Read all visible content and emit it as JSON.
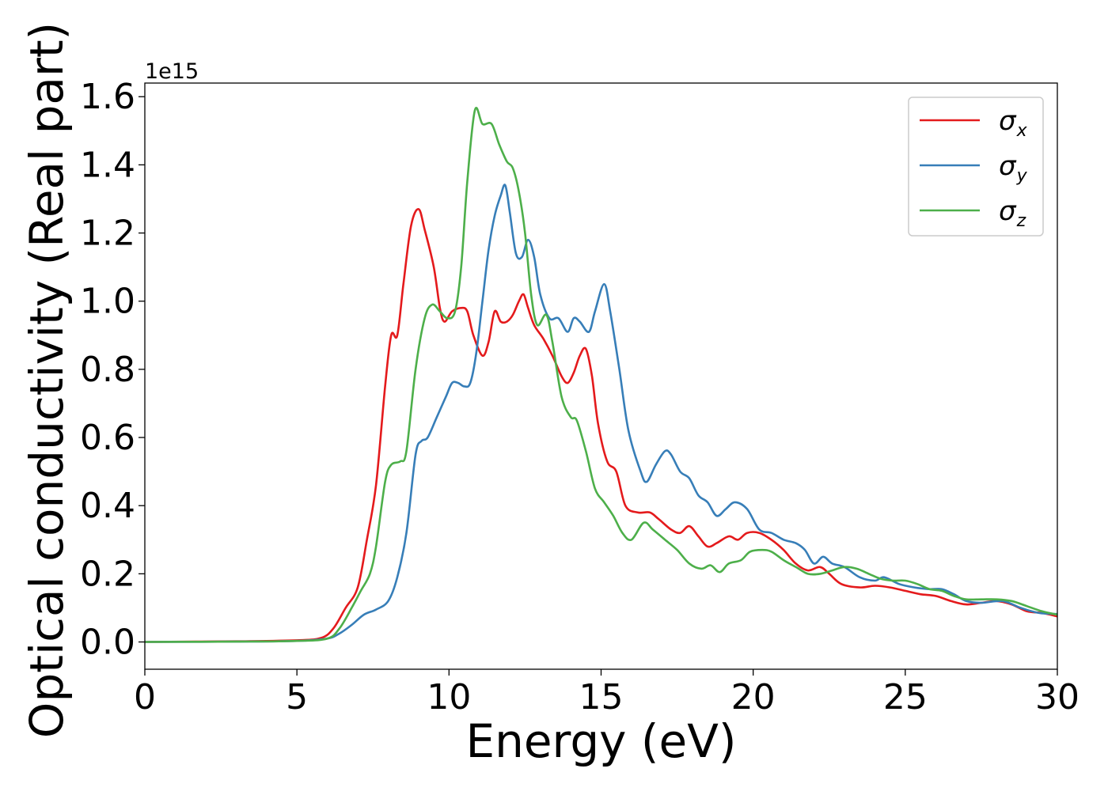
{
  "chart_data": {
    "type": "line",
    "title": "",
    "xlabel": "Energy (eV)",
    "ylabel": "Optical conductivity (Real part)",
    "y_offset_label": "1e15",
    "xlim": [
      0,
      30
    ],
    "ylim": [
      -0.08,
      1.64
    ],
    "xticks": [
      0,
      5,
      10,
      15,
      20,
      25,
      30
    ],
    "yticks": [
      0.0,
      0.2,
      0.4,
      0.6,
      0.8,
      1.0,
      1.2,
      1.4,
      1.6
    ],
    "xtick_labels": [
      "0",
      "5",
      "10",
      "15",
      "20",
      "25",
      "30"
    ],
    "ytick_labels": [
      "0.0",
      "0.2",
      "0.4",
      "0.6",
      "0.8",
      "1.0",
      "1.2",
      "1.4",
      "1.6"
    ],
    "grid": false,
    "legend_position": "top-right",
    "series": [
      {
        "name": "σx",
        "symbol": "σ",
        "subscript": "x",
        "color": "#e41a1c",
        "points": [
          [
            0,
            0
          ],
          [
            3,
            0.002
          ],
          [
            5,
            0.005
          ],
          [
            5.8,
            0.012
          ],
          [
            6.2,
            0.04
          ],
          [
            6.6,
            0.1
          ],
          [
            7,
            0.16
          ],
          [
            7.3,
            0.3
          ],
          [
            7.6,
            0.46
          ],
          [
            7.9,
            0.75
          ],
          [
            8.1,
            0.9
          ],
          [
            8.3,
            0.9
          ],
          [
            8.5,
            1.05
          ],
          [
            8.75,
            1.22
          ],
          [
            9,
            1.27
          ],
          [
            9.2,
            1.21
          ],
          [
            9.5,
            1.1
          ],
          [
            9.7,
            0.98
          ],
          [
            9.85,
            0.94
          ],
          [
            10.1,
            0.97
          ],
          [
            10.4,
            0.98
          ],
          [
            10.6,
            0.97
          ],
          [
            10.8,
            0.9
          ],
          [
            11.1,
            0.84
          ],
          [
            11.3,
            0.88
          ],
          [
            11.5,
            0.97
          ],
          [
            11.7,
            0.94
          ],
          [
            11.9,
            0.94
          ],
          [
            12.1,
            0.96
          ],
          [
            12.3,
            1.0
          ],
          [
            12.45,
            1.02
          ],
          [
            12.6,
            0.98
          ],
          [
            12.8,
            0.93
          ],
          [
            13.1,
            0.89
          ],
          [
            13.4,
            0.84
          ],
          [
            13.7,
            0.78
          ],
          [
            13.9,
            0.76
          ],
          [
            14.1,
            0.79
          ],
          [
            14.3,
            0.84
          ],
          [
            14.5,
            0.86
          ],
          [
            14.7,
            0.78
          ],
          [
            14.9,
            0.64
          ],
          [
            15.2,
            0.53
          ],
          [
            15.5,
            0.5
          ],
          [
            15.8,
            0.4
          ],
          [
            16.2,
            0.38
          ],
          [
            16.6,
            0.38
          ],
          [
            16.9,
            0.36
          ],
          [
            17.3,
            0.33
          ],
          [
            17.6,
            0.32
          ],
          [
            17.9,
            0.34
          ],
          [
            18.2,
            0.31
          ],
          [
            18.5,
            0.28
          ],
          [
            18.8,
            0.29
          ],
          [
            19.2,
            0.31
          ],
          [
            19.5,
            0.3
          ],
          [
            19.8,
            0.32
          ],
          [
            20.2,
            0.32
          ],
          [
            20.6,
            0.3
          ],
          [
            21,
            0.27
          ],
          [
            21.4,
            0.23
          ],
          [
            21.8,
            0.21
          ],
          [
            22.2,
            0.22
          ],
          [
            22.5,
            0.2
          ],
          [
            22.9,
            0.17
          ],
          [
            23.5,
            0.16
          ],
          [
            24,
            0.165
          ],
          [
            24.5,
            0.16
          ],
          [
            25,
            0.15
          ],
          [
            25.5,
            0.14
          ],
          [
            26,
            0.135
          ],
          [
            26.5,
            0.12
          ],
          [
            27,
            0.11
          ],
          [
            27.5,
            0.115
          ],
          [
            28,
            0.12
          ],
          [
            28.5,
            0.11
          ],
          [
            29,
            0.09
          ],
          [
            29.5,
            0.085
          ],
          [
            30,
            0.075
          ]
        ]
      },
      {
        "name": "σy",
        "symbol": "σ",
        "subscript": "y",
        "color": "#377eb8",
        "points": [
          [
            0,
            0
          ],
          [
            3,
            0.001
          ],
          [
            5,
            0.003
          ],
          [
            6,
            0.01
          ],
          [
            6.4,
            0.025
          ],
          [
            6.8,
            0.05
          ],
          [
            7.2,
            0.08
          ],
          [
            7.6,
            0.095
          ],
          [
            8,
            0.12
          ],
          [
            8.3,
            0.19
          ],
          [
            8.6,
            0.32
          ],
          [
            8.9,
            0.55
          ],
          [
            9.1,
            0.59
          ],
          [
            9.3,
            0.6
          ],
          [
            9.6,
            0.66
          ],
          [
            9.9,
            0.72
          ],
          [
            10.1,
            0.76
          ],
          [
            10.3,
            0.76
          ],
          [
            10.5,
            0.75
          ],
          [
            10.7,
            0.76
          ],
          [
            10.9,
            0.85
          ],
          [
            11.1,
            1.0
          ],
          [
            11.3,
            1.15
          ],
          [
            11.5,
            1.25
          ],
          [
            11.7,
            1.31
          ],
          [
            11.85,
            1.34
          ],
          [
            12,
            1.26
          ],
          [
            12.2,
            1.14
          ],
          [
            12.4,
            1.13
          ],
          [
            12.6,
            1.18
          ],
          [
            12.8,
            1.13
          ],
          [
            13,
            1.02
          ],
          [
            13.3,
            0.95
          ],
          [
            13.6,
            0.95
          ],
          [
            13.9,
            0.91
          ],
          [
            14.1,
            0.95
          ],
          [
            14.3,
            0.94
          ],
          [
            14.6,
            0.91
          ],
          [
            14.8,
            0.97
          ],
          [
            15.1,
            1.05
          ],
          [
            15.3,
            0.97
          ],
          [
            15.6,
            0.8
          ],
          [
            15.9,
            0.62
          ],
          [
            16.3,
            0.5
          ],
          [
            16.5,
            0.47
          ],
          [
            16.8,
            0.52
          ],
          [
            17.1,
            0.56
          ],
          [
            17.3,
            0.55
          ],
          [
            17.6,
            0.5
          ],
          [
            17.9,
            0.48
          ],
          [
            18.2,
            0.43
          ],
          [
            18.5,
            0.41
          ],
          [
            18.8,
            0.37
          ],
          [
            19.1,
            0.39
          ],
          [
            19.4,
            0.41
          ],
          [
            19.8,
            0.39
          ],
          [
            20.2,
            0.33
          ],
          [
            20.6,
            0.32
          ],
          [
            21,
            0.3
          ],
          [
            21.4,
            0.29
          ],
          [
            21.7,
            0.27
          ],
          [
            22,
            0.23
          ],
          [
            22.3,
            0.25
          ],
          [
            22.6,
            0.23
          ],
          [
            23,
            0.22
          ],
          [
            23.5,
            0.19
          ],
          [
            24,
            0.18
          ],
          [
            24.3,
            0.19
          ],
          [
            24.8,
            0.17
          ],
          [
            25.3,
            0.16
          ],
          [
            25.8,
            0.155
          ],
          [
            26.2,
            0.155
          ],
          [
            26.6,
            0.14
          ],
          [
            27,
            0.12
          ],
          [
            27.5,
            0.115
          ],
          [
            28.2,
            0.12
          ],
          [
            28.8,
            0.1
          ],
          [
            29.4,
            0.085
          ],
          [
            30,
            0.082
          ]
        ]
      },
      {
        "name": "σz",
        "symbol": "σ",
        "subscript": "z",
        "color": "#4daf4a",
        "points": [
          [
            0,
            0
          ],
          [
            3,
            0.001
          ],
          [
            5,
            0.003
          ],
          [
            6,
            0.01
          ],
          [
            6.4,
            0.04
          ],
          [
            6.8,
            0.1
          ],
          [
            7.1,
            0.15
          ],
          [
            7.4,
            0.2
          ],
          [
            7.6,
            0.28
          ],
          [
            7.9,
            0.47
          ],
          [
            8.1,
            0.52
          ],
          [
            8.4,
            0.53
          ],
          [
            8.6,
            0.56
          ],
          [
            8.9,
            0.8
          ],
          [
            9.2,
            0.95
          ],
          [
            9.45,
            0.99
          ],
          [
            9.7,
            0.97
          ],
          [
            9.95,
            0.95
          ],
          [
            10.2,
            0.97
          ],
          [
            10.4,
            1.1
          ],
          [
            10.6,
            1.35
          ],
          [
            10.85,
            1.56
          ],
          [
            11.1,
            1.52
          ],
          [
            11.4,
            1.52
          ],
          [
            11.65,
            1.46
          ],
          [
            11.9,
            1.41
          ],
          [
            12.1,
            1.39
          ],
          [
            12.3,
            1.32
          ],
          [
            12.5,
            1.2
          ],
          [
            12.7,
            1.02
          ],
          [
            12.9,
            0.93
          ],
          [
            13.2,
            0.96
          ],
          [
            13.4,
            0.88
          ],
          [
            13.7,
            0.72
          ],
          [
            14,
            0.66
          ],
          [
            14.2,
            0.65
          ],
          [
            14.5,
            0.56
          ],
          [
            14.8,
            0.45
          ],
          [
            15.1,
            0.41
          ],
          [
            15.4,
            0.37
          ],
          [
            15.7,
            0.32
          ],
          [
            16,
            0.3
          ],
          [
            16.4,
            0.35
          ],
          [
            16.7,
            0.33
          ],
          [
            17.1,
            0.3
          ],
          [
            17.5,
            0.27
          ],
          [
            17.9,
            0.23
          ],
          [
            18.3,
            0.215
          ],
          [
            18.6,
            0.225
          ],
          [
            18.9,
            0.205
          ],
          [
            19.2,
            0.23
          ],
          [
            19.6,
            0.24
          ],
          [
            19.9,
            0.265
          ],
          [
            20.3,
            0.27
          ],
          [
            20.6,
            0.265
          ],
          [
            21,
            0.24
          ],
          [
            21.4,
            0.22
          ],
          [
            21.8,
            0.2
          ],
          [
            22.2,
            0.2
          ],
          [
            22.6,
            0.21
          ],
          [
            23,
            0.22
          ],
          [
            23.4,
            0.215
          ],
          [
            23.8,
            0.2
          ],
          [
            24.2,
            0.185
          ],
          [
            24.6,
            0.18
          ],
          [
            25,
            0.18
          ],
          [
            25.4,
            0.17
          ],
          [
            25.8,
            0.155
          ],
          [
            26.2,
            0.15
          ],
          [
            26.6,
            0.135
          ],
          [
            27,
            0.125
          ],
          [
            27.5,
            0.125
          ],
          [
            28,
            0.125
          ],
          [
            28.5,
            0.12
          ],
          [
            29,
            0.105
          ],
          [
            29.5,
            0.09
          ],
          [
            30,
            0.08
          ]
        ]
      }
    ]
  }
}
